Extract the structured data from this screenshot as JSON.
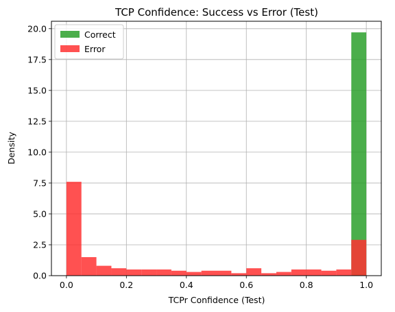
{
  "chart_data": {
    "type": "bar",
    "title": "TCP Confidence: Success vs Error (Test)",
    "xlabel": "TCPr Confidence (Test)",
    "ylabel": "Density",
    "xlim": [
      -0.05,
      1.05
    ],
    "ylim": [
      0,
      20.6
    ],
    "xticks": [
      0.0,
      0.2,
      0.4,
      0.6,
      0.8,
      1.0
    ],
    "xtick_labels": [
      "0.0",
      "0.2",
      "0.4",
      "0.6",
      "0.8",
      "1.0"
    ],
    "yticks": [
      0,
      2.5,
      5,
      7.5,
      10,
      12.5,
      15,
      17.5,
      20
    ],
    "ytick_labels": [
      "0.0",
      "2.5",
      "5.0",
      "7.5",
      "10.0",
      "12.5",
      "15.0",
      "17.5",
      "20.0"
    ],
    "grid": true,
    "legend_position": "top-left",
    "bin_width": 0.05,
    "series": [
      {
        "name": "Correct",
        "color": "#2ca02c",
        "opacity": 0.85,
        "bin_starts": [
          0.95
        ],
        "values": [
          19.7
        ]
      },
      {
        "name": "Error",
        "color": "#ff3333",
        "opacity": 0.85,
        "bin_starts": [
          0.0,
          0.05,
          0.1,
          0.15,
          0.2,
          0.25,
          0.3,
          0.35,
          0.4,
          0.45,
          0.5,
          0.55,
          0.6,
          0.65,
          0.7,
          0.75,
          0.8,
          0.85,
          0.9,
          0.95
        ],
        "values": [
          7.6,
          1.5,
          0.8,
          0.6,
          0.5,
          0.5,
          0.5,
          0.4,
          0.3,
          0.4,
          0.4,
          0.2,
          0.6,
          0.2,
          0.3,
          0.5,
          0.5,
          0.4,
          0.5,
          2.9
        ]
      }
    ]
  }
}
